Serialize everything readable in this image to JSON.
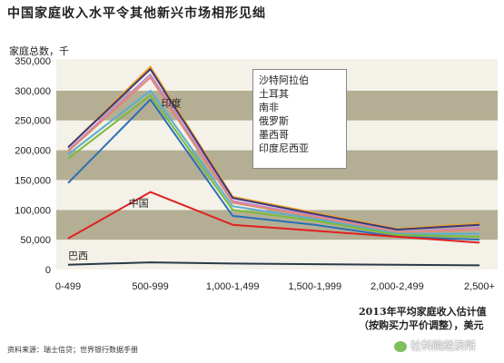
{
  "title": "中国家庭收入水平令其他新兴市场相形见绌",
  "xcaption_line1": "2013年平均家庭收入估计值",
  "xcaption_line2": "（按购买力平价调整），美元",
  "source": "资料来源：瑞士信贷；世界银行数据手册",
  "watermark": "社科院经济所",
  "chart_data": {
    "type": "line",
    "ylabel": "家庭总数，千",
    "ylim": [
      0,
      350000
    ],
    "yticks": [
      "0",
      "50,000",
      "100,000",
      "150,000",
      "200,000",
      "250,000",
      "300,000",
      "350,000"
    ],
    "categories": [
      "0-499",
      "500-999",
      "1,000-1,499",
      "1,500-1,999",
      "2,000-2,499",
      "2,500+"
    ],
    "legend": [
      "沙特阿拉伯",
      "土耳其",
      "南非",
      "俄罗斯",
      "墨西哥",
      "印度尼西亚"
    ],
    "legend_position": "top-center",
    "series": [
      {
        "name": "印度",
        "color": "#2a6fb5",
        "values": [
          145000,
          285000,
          90000,
          75000,
          55000,
          50000
        ]
      },
      {
        "name": "中国",
        "color": "#e02020",
        "values": [
          52000,
          130000,
          75000,
          65000,
          55000,
          45000
        ]
      },
      {
        "name": "巴西",
        "color": "#2a3a4a",
        "values": [
          8000,
          12000,
          10000,
          9000,
          8000,
          7000
        ]
      },
      {
        "name": "沙特阿拉伯",
        "color": "#f4a020",
        "values": [
          205000,
          340000,
          122000,
          95000,
          68000,
          77000
        ]
      },
      {
        "name": "土耳其",
        "color": "#3a3a7a",
        "values": [
          205000,
          336000,
          120000,
          93000,
          67000,
          75000
        ]
      },
      {
        "name": "南非",
        "color": "#c888c8",
        "values": [
          200000,
          327000,
          115000,
          90000,
          63000,
          70000
        ]
      },
      {
        "name": "俄罗斯",
        "color": "#e08a70",
        "values": [
          198000,
          322000,
          112000,
          88000,
          62000,
          67000
        ]
      },
      {
        "name": "墨西哥",
        "color": "#5aaed0",
        "values": [
          193000,
          300000,
          106000,
          85000,
          60000,
          60000
        ]
      },
      {
        "name": "印度尼西亚",
        "color": "#7cba3a",
        "values": [
          186000,
          292000,
          100000,
          82000,
          58000,
          55000
        ]
      }
    ],
    "series_labels": [
      {
        "text": "印度",
        "series": 0
      },
      {
        "text": "中国",
        "series": 1
      },
      {
        "text": "巴西",
        "series": 2
      }
    ]
  }
}
